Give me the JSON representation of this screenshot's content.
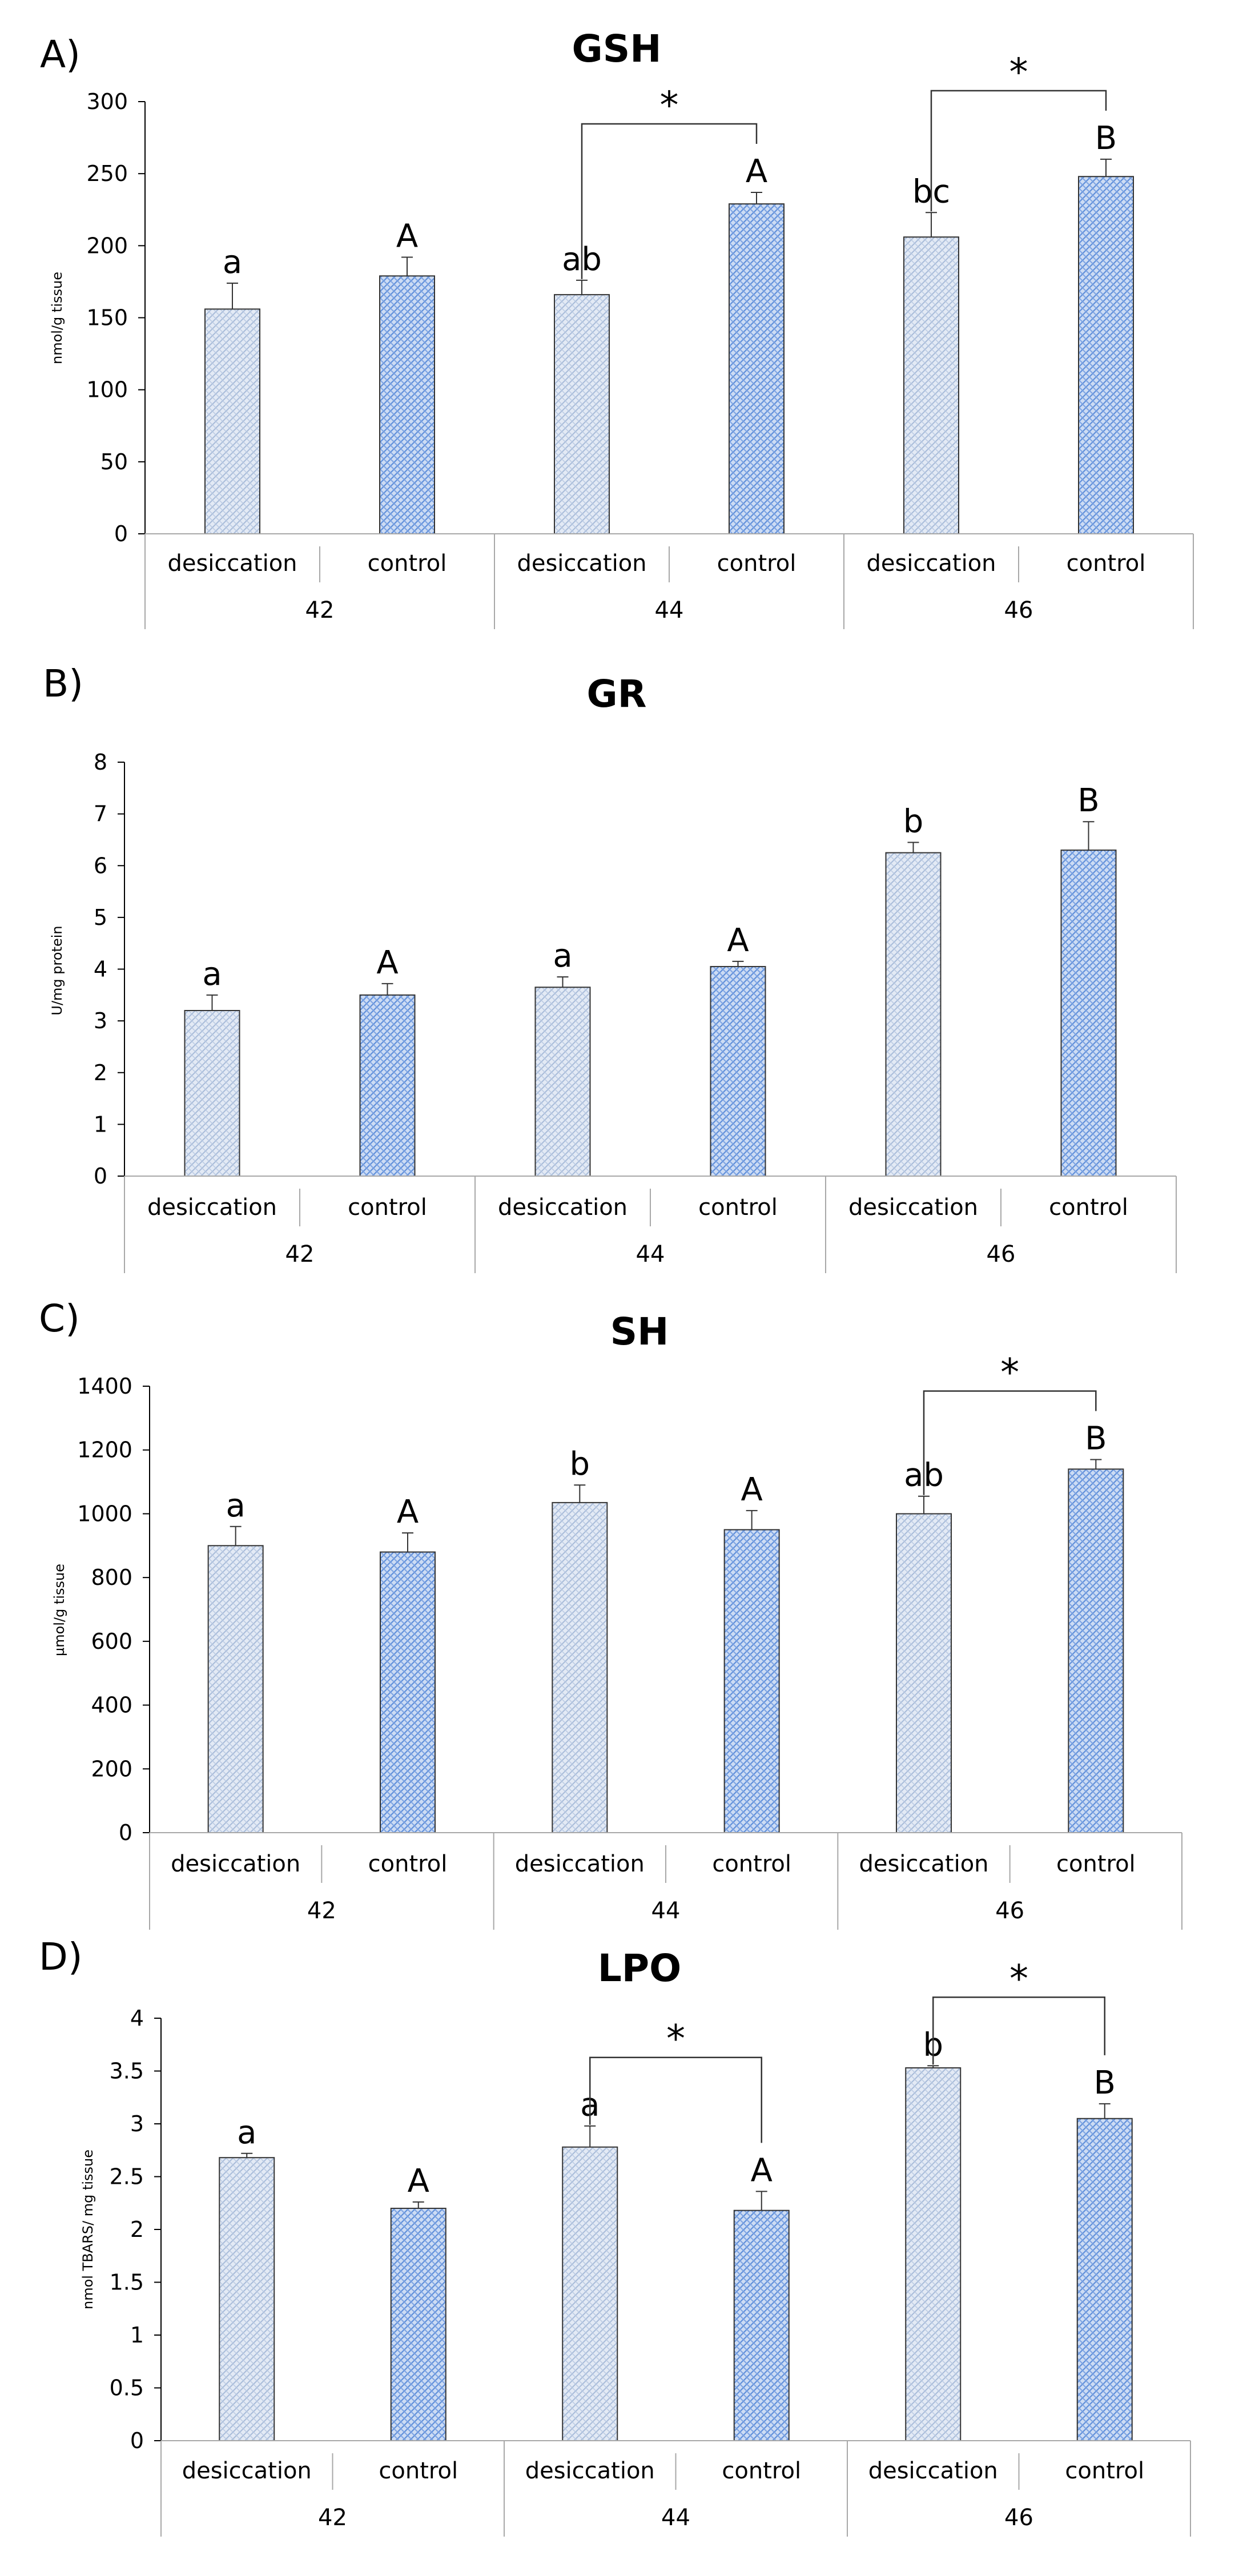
{
  "chart_data": [
    {
      "panel": "A)",
      "type": "bar",
      "title": "GSH",
      "ylabel": "nmol/g tissue",
      "ylim": [
        0,
        300
      ],
      "yticks": [
        "0",
        "50",
        "100",
        "150",
        "200",
        "250",
        "300"
      ],
      "groups": [
        "42",
        "44",
        "46"
      ],
      "categories": [
        "desiccation",
        "control",
        "desiccation",
        "control",
        "desiccation",
        "control"
      ],
      "values": [
        156,
        179,
        166,
        229,
        206,
        248
      ],
      "errors": [
        18,
        13,
        10,
        8,
        17,
        12
      ],
      "labels": [
        "a",
        "A",
        "ab",
        "A",
        "bc",
        "B"
      ],
      "brackets": [
        {
          "from": 2,
          "to": 3,
          "label": "*"
        },
        {
          "from": 4,
          "to": 5,
          "label": "*"
        }
      ]
    },
    {
      "panel": "B)",
      "type": "bar",
      "title": "GR",
      "ylabel": "U/mg protein",
      "ylim": [
        0,
        8
      ],
      "yticks": [
        "0",
        "1",
        "2",
        "3",
        "4",
        "5",
        "6",
        "7",
        "8"
      ],
      "groups": [
        "42",
        "44",
        "46"
      ],
      "categories": [
        "desiccation",
        "control",
        "desiccation",
        "control",
        "desiccation",
        "control"
      ],
      "values": [
        3.2,
        3.5,
        3.65,
        4.05,
        6.25,
        6.3
      ],
      "errors": [
        0.3,
        0.22,
        0.2,
        0.1,
        0.2,
        0.55
      ],
      "labels": [
        "a",
        "A",
        "a",
        "A",
        "b",
        "B"
      ],
      "brackets": []
    },
    {
      "panel": "C)",
      "type": "bar",
      "title": "SH",
      "ylabel": "µmol/g tissue",
      "ylim": [
        0,
        1400
      ],
      "yticks": [
        "0",
        "200",
        "400",
        "600",
        "800",
        "1000",
        "1200",
        "1400"
      ],
      "groups": [
        "42",
        "44",
        "46"
      ],
      "categories": [
        "desiccation",
        "control",
        "desiccation",
        "control",
        "desiccation",
        "control"
      ],
      "values": [
        900,
        880,
        1035,
        950,
        1000,
        1140
      ],
      "errors": [
        60,
        60,
        55,
        60,
        55,
        30
      ],
      "labels": [
        "a",
        "A",
        "b",
        "A",
        "ab",
        "B"
      ],
      "brackets": [
        {
          "from": 4,
          "to": 5,
          "label": "*"
        }
      ]
    },
    {
      "panel": "D)",
      "type": "bar",
      "title": "LPO",
      "ylabel": "nmol TBARS/ mg tissue",
      "ylim": [
        0,
        4
      ],
      "yticks": [
        "0",
        "0.5",
        "1",
        "1.5",
        "2",
        "2.5",
        "3",
        "3.5",
        "4"
      ],
      "groups": [
        "42",
        "44",
        "46"
      ],
      "categories": [
        "desiccation",
        "control",
        "desiccation",
        "control",
        "desiccation",
        "control"
      ],
      "values": [
        2.68,
        2.2,
        2.78,
        2.18,
        3.53,
        3.05
      ],
      "errors": [
        0.04,
        0.06,
        0.2,
        0.18,
        0.02,
        0.14
      ],
      "labels": [
        "a",
        "A",
        "a",
        "A",
        "b",
        "B"
      ],
      "brackets": [
        {
          "from": 2,
          "to": 3,
          "label": "*"
        },
        {
          "from": 4,
          "to": 5,
          "label": "*"
        }
      ]
    }
  ],
  "colors": {
    "desiccation": "#c4d2e6",
    "control": "#9fbbe8",
    "axis": "#000000",
    "grid_separator": "#a8a8a8"
  }
}
